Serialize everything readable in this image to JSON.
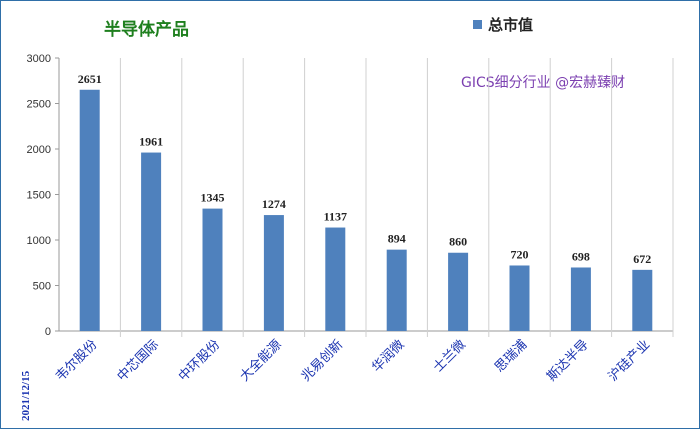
{
  "chart_data": {
    "type": "bar",
    "title": "半导体产品",
    "categories": [
      "韦尔股份",
      "中芯国际",
      "中环股份",
      "大全能源",
      "兆易创新",
      "华润微",
      "士兰微",
      "思瑞浦",
      "斯达半导",
      "沪硅产业"
    ],
    "series": [
      {
        "name": "总市值",
        "values": [
          2651,
          1961,
          1345,
          1274,
          1137,
          894,
          860,
          720,
          698,
          672
        ]
      }
    ],
    "ylim": [
      0,
      3000
    ],
    "yticks": [
      0,
      500,
      1000,
      1500,
      2000,
      2500,
      3000
    ],
    "grid": "vertical-separators",
    "legend": "top-right",
    "bar_color": "#4f81bd",
    "annotation": "GICS细分行业 @宏赫臻财",
    "date": "2021/12/15"
  }
}
